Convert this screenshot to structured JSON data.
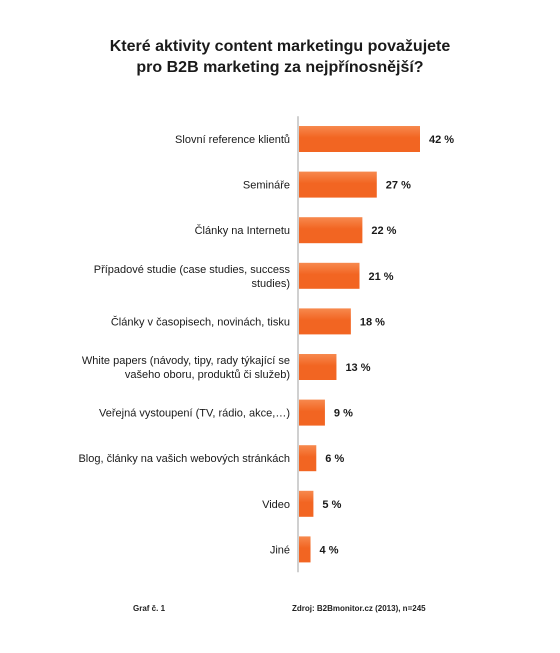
{
  "chart_data": {
    "type": "bar",
    "orientation": "horizontal",
    "title": [
      "Které aktivity content marketingu považujete",
      "pro B2B marketing za nejpřínosnější?"
    ],
    "categories": [
      [
        "Slovní reference klientů"
      ],
      [
        "Semináře"
      ],
      [
        "Články na Internetu"
      ],
      [
        "Případové studie (case studies, success",
        "studies)"
      ],
      [
        "Články v časopisech, novinách, tisku"
      ],
      [
        "White papers (návody, tipy, rady týkající se",
        "vašeho oboru, produktů či služeb)"
      ],
      [
        "Veřejná vystoupení (TV, rádio, akce,…)"
      ],
      [
        "Blog, články na vašich webových stránkách"
      ],
      [
        "Video"
      ],
      [
        "Jiné"
      ]
    ],
    "values": [
      42,
      27,
      22,
      21,
      18,
      13,
      9,
      6,
      5,
      4
    ],
    "value_labels": [
      "42 %",
      "27 %",
      "22 %",
      "21 %",
      "18 %",
      "13 %",
      "9 %",
      "6 %",
      "5 %",
      "4 %"
    ],
    "unit": "%",
    "bar_color": "#F26522",
    "bar_gradient_light": "#F7894E",
    "axis_color": "#A0A0A0",
    "grid": false,
    "legend": "none"
  },
  "footer": {
    "left": "Graf č. 1",
    "right": "Zdroj: B2Bmonitor.cz (2013), n=245"
  }
}
